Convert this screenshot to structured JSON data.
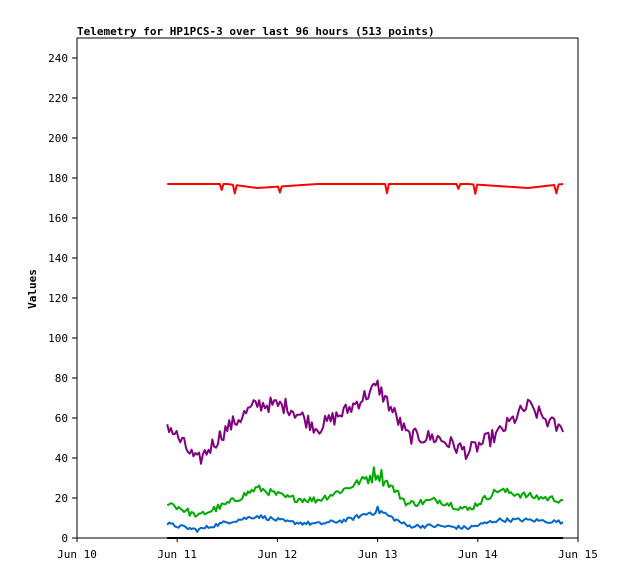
{
  "chart_data": {
    "type": "line",
    "title": "Telemetry for HP1PCS-3 over last 96 hours (513 points)",
    "xlabel": "",
    "ylabel": "Values",
    "xlim": [
      "Jun 10",
      "Jun 15"
    ],
    "ylim": [
      0,
      250
    ],
    "x_ticks": [
      "Jun 10",
      "Jun 11",
      "Jun 12",
      "Jun 13",
      "Jun 14",
      "Jun 15"
    ],
    "y_ticks": [
      0,
      20,
      40,
      60,
      80,
      100,
      120,
      140,
      160,
      180,
      200,
      220,
      240
    ],
    "grid": false,
    "legend": "none",
    "series_x_days": [
      0.9,
      1.2,
      1.5,
      1.8,
      2.1,
      2.4,
      2.7,
      3.0,
      3.3,
      3.6,
      3.9,
      4.2,
      4.5,
      4.85
    ],
    "series": [
      {
        "color": "#ff0000",
        "values": [
          177,
          177,
          177,
          175,
          176,
          177,
          177,
          177,
          177,
          177,
          177,
          176,
          175,
          177
        ]
      },
      {
        "color": "#800080",
        "values": [
          57,
          38,
          55,
          67,
          66,
          55,
          64,
          76,
          51,
          50,
          43,
          52,
          66,
          53
        ]
      },
      {
        "color": "#00aa00",
        "values": [
          18,
          11,
          17,
          25,
          20,
          19,
          25,
          33,
          17,
          19,
          14,
          24,
          21,
          19
        ]
      },
      {
        "color": "#0066cc",
        "values": [
          7,
          4,
          8,
          11,
          8,
          7,
          9,
          14,
          6,
          6,
          5,
          9,
          9,
          8
        ]
      },
      {
        "color": "#000000",
        "values": [
          0,
          0,
          0,
          0,
          0,
          0,
          0,
          0,
          0,
          0,
          0,
          0,
          0,
          0
        ]
      }
    ]
  }
}
